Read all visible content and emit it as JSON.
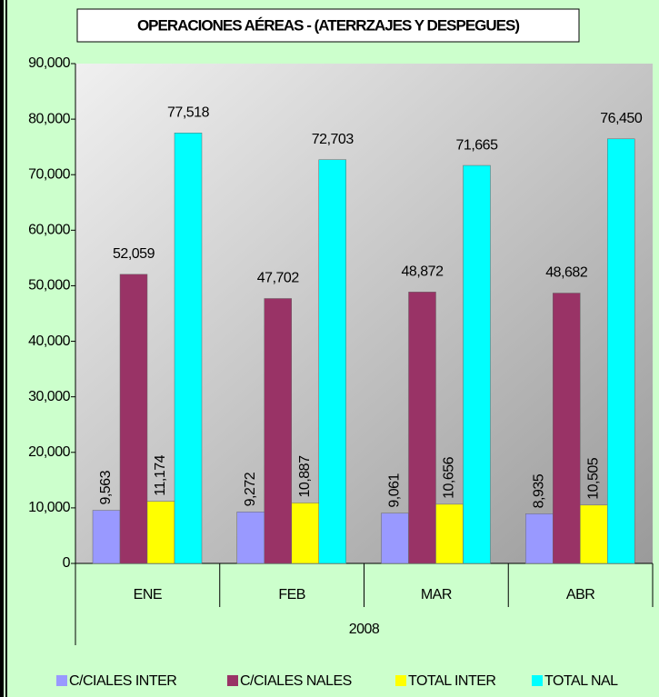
{
  "chart_data": {
    "type": "bar",
    "title": "OPERACIONES AÉREAS -  (ATERRZAJES Y DESPEGUES)",
    "categories": [
      "ENE",
      "FEB",
      "MAR",
      "ABR"
    ],
    "group_label": "2008",
    "series": [
      {
        "name": "C/CIALES INTER",
        "color": "#9999ff",
        "values": [
          9563,
          9272,
          9061,
          8935
        ],
        "value_labels": [
          "9,563",
          "9,272",
          "9,061",
          "8,935"
        ]
      },
      {
        "name": "C/CIALES NALES",
        "color": "#993366",
        "values": [
          52059,
          47702,
          48872,
          48682
        ],
        "value_labels": [
          "52,059",
          "47,702",
          "48,872",
          "48,682"
        ]
      },
      {
        "name": "TOTAL INTER",
        "color": "#ffff00",
        "values": [
          11174,
          10887,
          10656,
          10505
        ],
        "value_labels": [
          "11,174",
          "10,887",
          "10,656",
          "10,505"
        ]
      },
      {
        "name": "TOTAL NAL",
        "color": "#00ffff",
        "values": [
          77518,
          72703,
          71665,
          76450
        ],
        "value_labels": [
          "77,518",
          "72,703",
          "71,665",
          "76,450"
        ]
      }
    ],
    "ylim": [
      0,
      90000
    ],
    "yticks": [
      0,
      {
        "value": 10000,
        "label": "10,000"
      },
      {
        "value": 20000,
        "label": "20,000"
      },
      {
        "value": 30000,
        "label": "30,000"
      },
      {
        "value": 40000,
        "label": "40,000"
      },
      {
        "value": 50000,
        "label": "50,000"
      },
      {
        "value": 60000,
        "label": "60,000"
      },
      {
        "value": 70000,
        "label": "70,000"
      },
      {
        "value": 80000,
        "label": "80,000"
      },
      {
        "value": 90000,
        "label": "90,000"
      }
    ],
    "grid": false
  }
}
